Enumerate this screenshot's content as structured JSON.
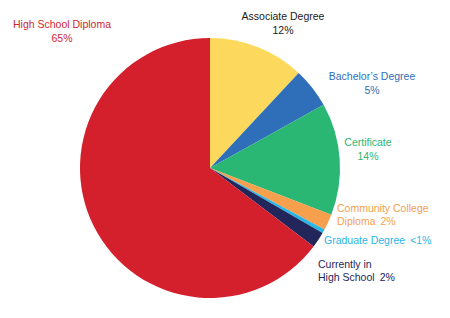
{
  "chart_data": {
    "type": "pie",
    "categories": [
      "Associate Degree",
      "Bachelor’s Degree",
      "Certificate",
      "Community College Diploma",
      "Graduate Degree",
      "Currently in High School",
      "High School Diploma"
    ],
    "values": [
      12,
      5,
      14,
      2,
      0.5,
      2,
      65
    ],
    "value_labels": [
      "12%",
      "5%",
      "14%",
      "2%",
      "<1%",
      "2%",
      "65%"
    ],
    "colors": [
      "#fcd95c",
      "#2f6fba",
      "#2ab673",
      "#f6a04d",
      "#29b6e6",
      "#23265a",
      "#d41f2d"
    ],
    "data_labels": true
  }
}
